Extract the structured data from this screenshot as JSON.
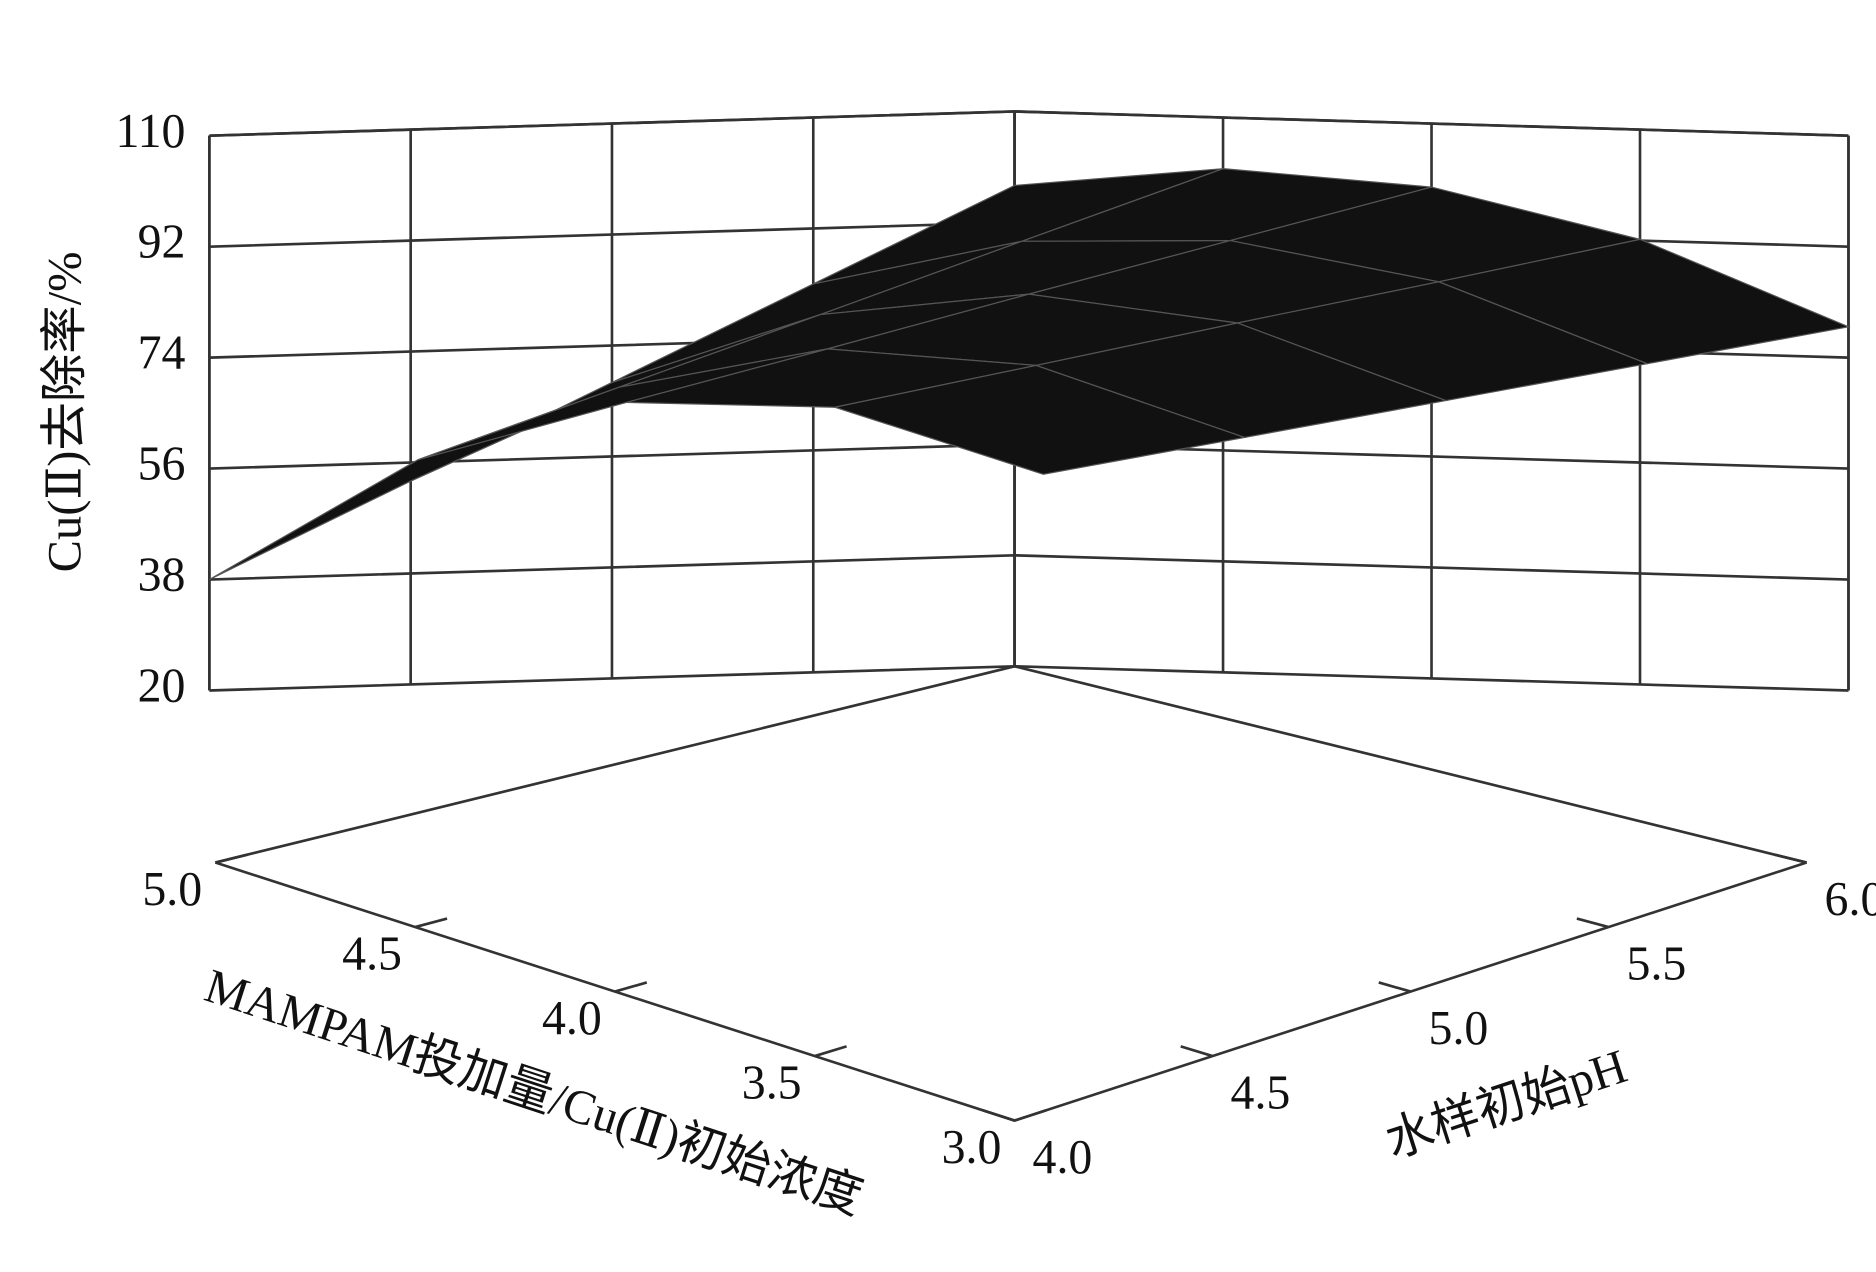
{
  "chart_data": {
    "type": "surface",
    "x_label": "水样初始pH",
    "y_label": "MAMPAM投加量/Cu(Ⅱ)初始浓度",
    "z_label": "Cu(Ⅱ)去除率/%",
    "x": [
      4,
      4.5,
      5,
      5.5,
      6
    ],
    "y": [
      3,
      3.5,
      4,
      4.5,
      5
    ],
    "z": [
      [
        59,
        64,
        69,
        74,
        79
      ],
      [
        68.9,
        74.7,
        80.6,
        86.3,
        92.2
      ],
      [
        68.7,
        76.4,
        84.3,
        92.0,
        99.7
      ],
      [
        58.4,
        69.2,
        80.0,
        90.9,
        101.7
      ],
      [
        38.0,
        53.0,
        68.0,
        83.0,
        98.0
      ]
    ],
    "xlim": [
      4,
      6
    ],
    "ylim": [
      3,
      5
    ],
    "zlim": [
      20,
      110
    ],
    "xticks": [
      {
        "value": 4,
        "label": "4.0"
      },
      {
        "value": 4.5,
        "label": "4.5"
      },
      {
        "value": 5,
        "label": "5.0"
      },
      {
        "value": 5.5,
        "label": "5.5"
      },
      {
        "value": 6,
        "label": "6.0"
      }
    ],
    "yticks": [
      {
        "value": 3,
        "label": "3.0"
      },
      {
        "value": 3.5,
        "label": "3.5"
      },
      {
        "value": 4,
        "label": "4.0"
      },
      {
        "value": 4.5,
        "label": "4.5"
      },
      {
        "value": 5,
        "label": "5.0"
      }
    ],
    "zticks": [
      20,
      38,
      56,
      74,
      92,
      110
    ],
    "color": "#111111",
    "grid": true
  }
}
